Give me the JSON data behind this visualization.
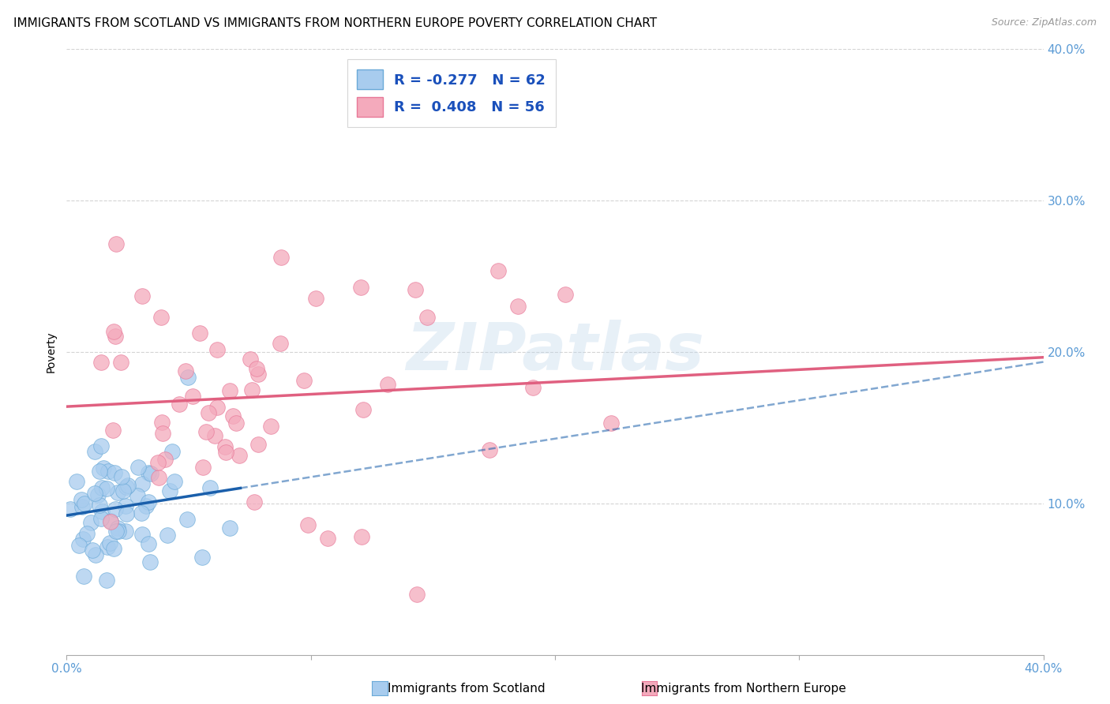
{
  "title": "IMMIGRANTS FROM SCOTLAND VS IMMIGRANTS FROM NORTHERN EUROPE POVERTY CORRELATION CHART",
  "source": "Source: ZipAtlas.com",
  "ylabel": "Poverty",
  "x_min": 0.0,
  "x_max": 0.4,
  "y_min": 0.0,
  "y_max": 0.4,
  "x_tick_labels": [
    "0.0%",
    "",
    "",
    "",
    "40.0%"
  ],
  "x_ticks": [
    0.0,
    0.1,
    0.2,
    0.3,
    0.4
  ],
  "right_y_tick_labels": [
    "10.0%",
    "20.0%",
    "30.0%",
    "40.0%"
  ],
  "right_y_ticks": [
    0.1,
    0.2,
    0.3,
    0.4
  ],
  "scotland_color": "#A8CCEE",
  "scotland_edge_color": "#6BAAD8",
  "northern_europe_color": "#F4AABC",
  "northern_europe_edge_color": "#E87898",
  "scotland_R": -0.277,
  "scotland_N": 62,
  "northern_europe_R": 0.408,
  "northern_europe_N": 56,
  "legend_label_scotland": "Immigrants from Scotland",
  "legend_label_northern": "Immigrants from Northern Europe",
  "watermark": "ZIPatlas",
  "grid_color": "#D0D0D0",
  "title_fontsize": 11,
  "axis_label_fontsize": 10,
  "tick_fontsize": 11,
  "scotland_line_color": "#1A5FAB",
  "northern_line_color": "#E06080",
  "legend_text_color": "#1A50BB",
  "right_tick_color": "#5B9BD5",
  "bottom_tick_color": "#5B9BD5"
}
